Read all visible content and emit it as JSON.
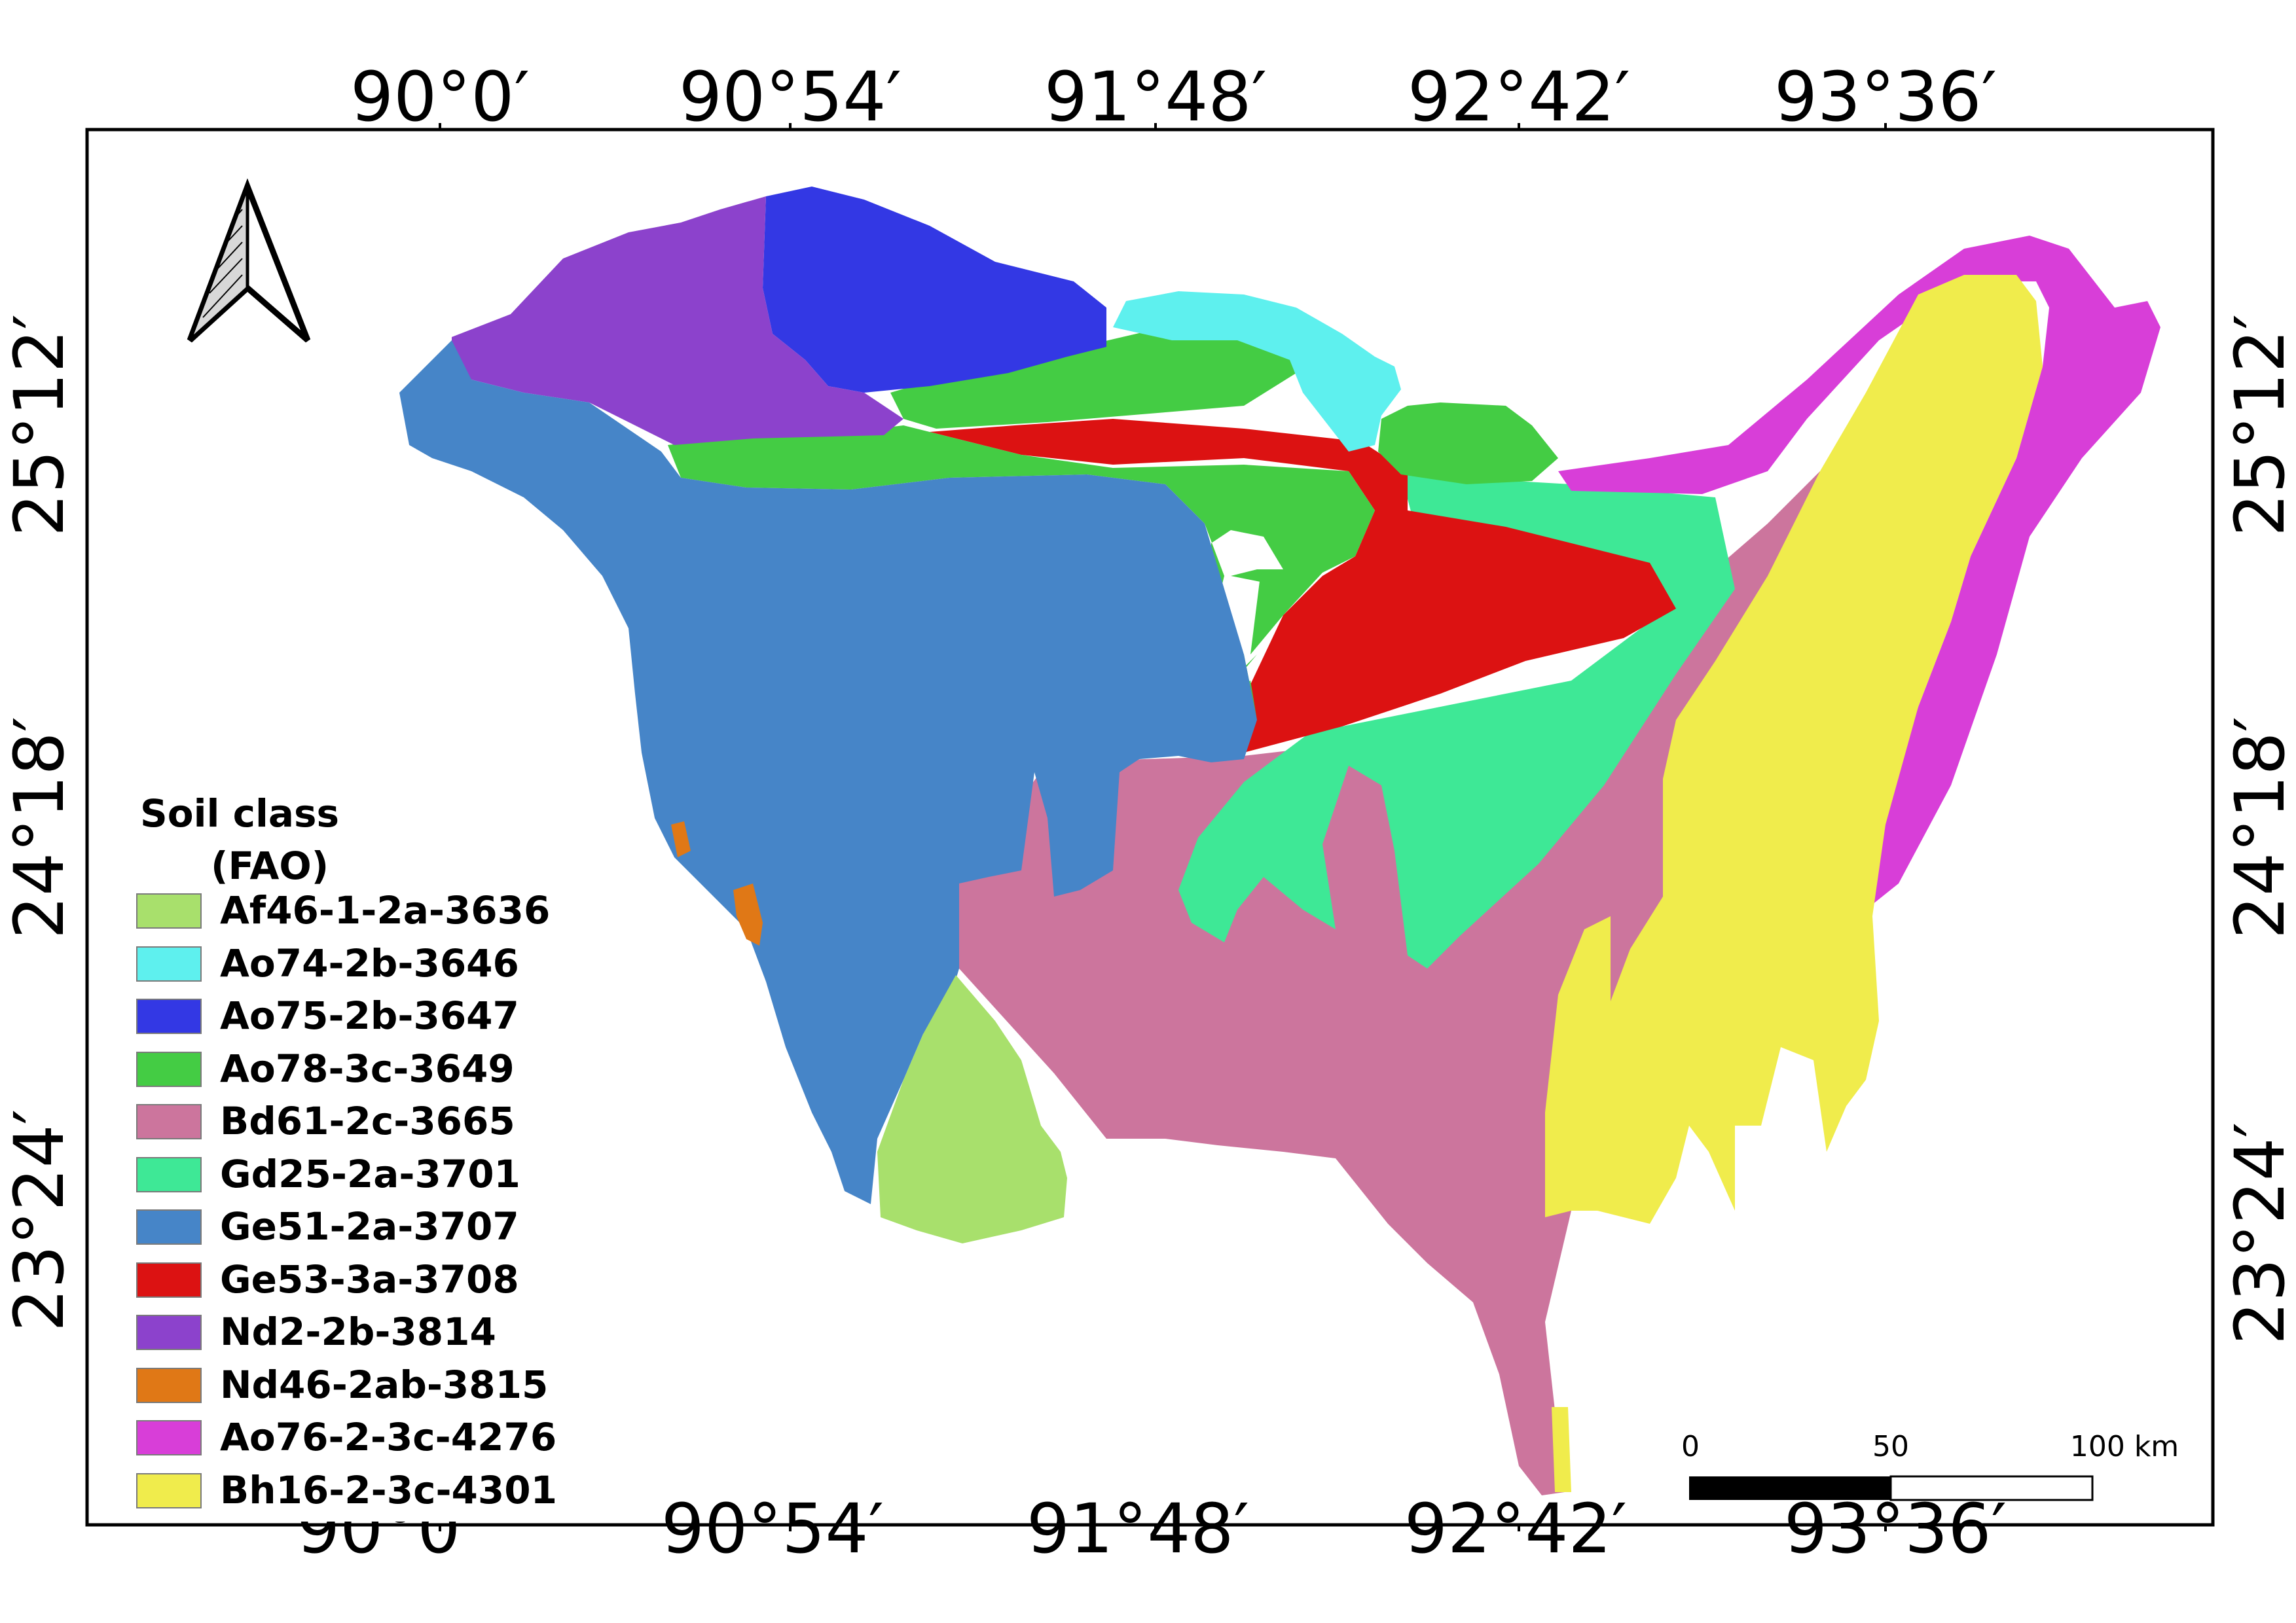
{
  "map": {
    "graticule": {
      "longitudes": [
        "90°0′",
        "90°54′",
        "91°48′",
        "92°42′",
        "93°36′"
      ],
      "latitudes": [
        "25°12′",
        "24°18′",
        "23°24′"
      ]
    },
    "north_arrow": "north-arrow-icon",
    "scale_bar": {
      "labels": [
        "0",
        "50",
        "100 km"
      ]
    },
    "legend": {
      "title_line1": "Soil class",
      "title_line2": "(FAO)",
      "items": [
        {
          "label": "Af46-1-2a-3636",
          "color": "#a8e06c"
        },
        {
          "label": "Ao74-2b-3646",
          "color": "#5ef0ee"
        },
        {
          "label": "Ao75-2b-3647",
          "color": "#3338e4"
        },
        {
          "label": "Ao78-3c-3649",
          "color": "#44cc44"
        },
        {
          "label": "Bd61-2c-3665",
          "color": "#cc759d"
        },
        {
          "label": "Gd25-2a-3701",
          "color": "#3ee896"
        },
        {
          "label": "Ge51-2a-3707",
          "color": "#4685c8"
        },
        {
          "label": "Ge53-3a-3708",
          "color": "#dc1212"
        },
        {
          "label": "Nd2-2b-3814",
          "color": "#8c42cc"
        },
        {
          "label": "Nd46-2ab-3815",
          "color": "#e07816"
        },
        {
          "label": "Ao76-2-3c-4276",
          "color": "#d83ed8"
        },
        {
          "label": "Bh16-2-3c-4301",
          "color": "#f0ec4c"
        }
      ]
    }
  }
}
